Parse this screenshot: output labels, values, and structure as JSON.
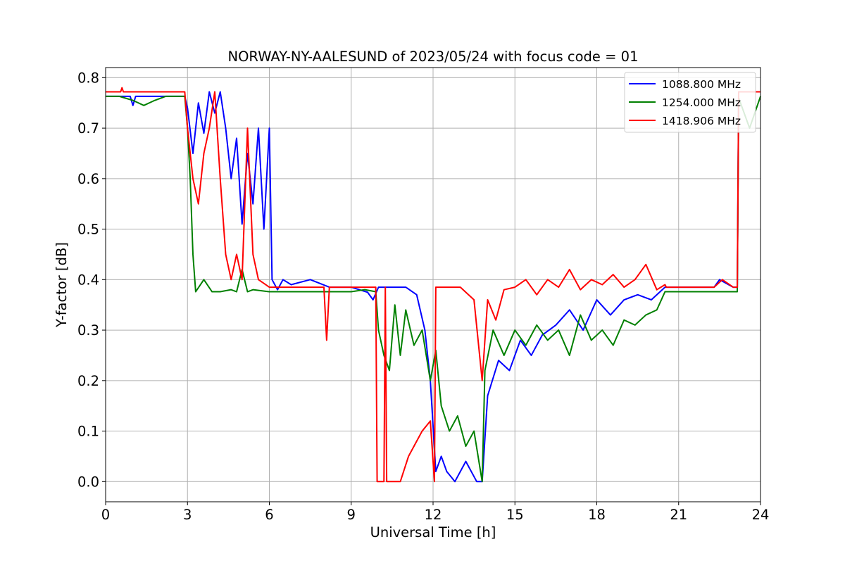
{
  "chart_data": {
    "type": "line",
    "title": "NORWAY-NY-AALESUND of 2023/05/24 with focus code = 01",
    "xlabel": "Universal Time [h]",
    "ylabel": "Y-factor [dB]",
    "xlim": [
      0,
      24
    ],
    "ylim": [
      -0.04,
      0.82
    ],
    "xticks": [
      0,
      3,
      6,
      9,
      12,
      15,
      18,
      21,
      24
    ],
    "yticks": [
      0.0,
      0.1,
      0.2,
      0.3,
      0.4,
      0.5,
      0.6,
      0.7,
      0.8
    ],
    "ytick_labels": [
      "0.0",
      "0.1",
      "0.2",
      "0.3",
      "0.4",
      "0.5",
      "0.6",
      "0.7",
      "0.8"
    ],
    "grid": true,
    "legend_position": "upper right",
    "series": [
      {
        "name": "1088.800 MHz",
        "color": "#0000ff",
        "points": [
          [
            0,
            0.763
          ],
          [
            0.9,
            0.763
          ],
          [
            1.0,
            0.745
          ],
          [
            1.1,
            0.763
          ],
          [
            2.9,
            0.763
          ],
          [
            3.0,
            0.74
          ],
          [
            3.2,
            0.65
          ],
          [
            3.4,
            0.75
          ],
          [
            3.6,
            0.69
          ],
          [
            3.8,
            0.772
          ],
          [
            4.0,
            0.73
          ],
          [
            4.2,
            0.772
          ],
          [
            4.4,
            0.7
          ],
          [
            4.6,
            0.6
          ],
          [
            4.8,
            0.68
          ],
          [
            5.0,
            0.51
          ],
          [
            5.2,
            0.65
          ],
          [
            5.4,
            0.55
          ],
          [
            5.6,
            0.7
          ],
          [
            5.8,
            0.5
          ],
          [
            6.0,
            0.7
          ],
          [
            6.1,
            0.4
          ],
          [
            6.3,
            0.38
          ],
          [
            6.5,
            0.4
          ],
          [
            6.8,
            0.39
          ],
          [
            7.5,
            0.4
          ],
          [
            8.2,
            0.385
          ],
          [
            9.0,
            0.385
          ],
          [
            9.6,
            0.375
          ],
          [
            9.8,
            0.36
          ],
          [
            10.0,
            0.385
          ],
          [
            11.0,
            0.385
          ],
          [
            11.4,
            0.37
          ],
          [
            11.7,
            0.3
          ],
          [
            11.9,
            0.2
          ],
          [
            12.1,
            0.02
          ],
          [
            12.3,
            0.05
          ],
          [
            12.5,
            0.02
          ],
          [
            12.8,
            0.0
          ],
          [
            13.2,
            0.04
          ],
          [
            13.6,
            0.0
          ],
          [
            13.8,
            0.0
          ],
          [
            14.0,
            0.17
          ],
          [
            14.4,
            0.24
          ],
          [
            14.8,
            0.22
          ],
          [
            15.2,
            0.28
          ],
          [
            15.6,
            0.25
          ],
          [
            16.0,
            0.29
          ],
          [
            16.5,
            0.31
          ],
          [
            17.0,
            0.34
          ],
          [
            17.5,
            0.3
          ],
          [
            18.0,
            0.36
          ],
          [
            18.5,
            0.33
          ],
          [
            19.0,
            0.36
          ],
          [
            19.5,
            0.37
          ],
          [
            20.0,
            0.36
          ],
          [
            20.5,
            0.385
          ],
          [
            21.0,
            0.385
          ],
          [
            22.3,
            0.385
          ],
          [
            22.5,
            0.4
          ],
          [
            23.0,
            0.385
          ],
          [
            23.15,
            0.385
          ],
          [
            23.2,
            0.772
          ],
          [
            24,
            0.772
          ]
        ]
      },
      {
        "name": "1254.000 MHz",
        "color": "#008000",
        "points": [
          [
            0,
            0.763
          ],
          [
            0.5,
            0.763
          ],
          [
            1.0,
            0.755
          ],
          [
            1.4,
            0.745
          ],
          [
            1.8,
            0.755
          ],
          [
            2.2,
            0.763
          ],
          [
            2.9,
            0.763
          ],
          [
            3.0,
            0.7
          ],
          [
            3.1,
            0.6
          ],
          [
            3.2,
            0.45
          ],
          [
            3.3,
            0.376
          ],
          [
            3.6,
            0.4
          ],
          [
            3.9,
            0.376
          ],
          [
            4.2,
            0.376
          ],
          [
            4.6,
            0.38
          ],
          [
            4.8,
            0.376
          ],
          [
            5.0,
            0.42
          ],
          [
            5.2,
            0.376
          ],
          [
            5.4,
            0.38
          ],
          [
            6.0,
            0.376
          ],
          [
            8.0,
            0.376
          ],
          [
            9.0,
            0.376
          ],
          [
            9.5,
            0.38
          ],
          [
            9.9,
            0.376
          ],
          [
            10.0,
            0.3
          ],
          [
            10.2,
            0.25
          ],
          [
            10.4,
            0.22
          ],
          [
            10.6,
            0.35
          ],
          [
            10.8,
            0.25
          ],
          [
            11.0,
            0.34
          ],
          [
            11.3,
            0.27
          ],
          [
            11.6,
            0.3
          ],
          [
            11.9,
            0.2
          ],
          [
            12.1,
            0.26
          ],
          [
            12.3,
            0.15
          ],
          [
            12.6,
            0.1
          ],
          [
            12.9,
            0.13
          ],
          [
            13.2,
            0.07
          ],
          [
            13.5,
            0.1
          ],
          [
            13.8,
            0.0
          ],
          [
            13.9,
            0.22
          ],
          [
            14.2,
            0.3
          ],
          [
            14.6,
            0.25
          ],
          [
            15.0,
            0.3
          ],
          [
            15.4,
            0.27
          ],
          [
            15.8,
            0.31
          ],
          [
            16.2,
            0.28
          ],
          [
            16.6,
            0.3
          ],
          [
            17.0,
            0.25
          ],
          [
            17.4,
            0.33
          ],
          [
            17.8,
            0.28
          ],
          [
            18.2,
            0.3
          ],
          [
            18.6,
            0.27
          ],
          [
            19.0,
            0.32
          ],
          [
            19.4,
            0.31
          ],
          [
            19.8,
            0.33
          ],
          [
            20.2,
            0.34
          ],
          [
            20.5,
            0.376
          ],
          [
            21.0,
            0.376
          ],
          [
            23.15,
            0.376
          ],
          [
            23.2,
            0.76
          ],
          [
            23.6,
            0.7
          ],
          [
            24,
            0.763
          ]
        ]
      },
      {
        "name": "1418.906 MHz",
        "color": "#ff0000",
        "points": [
          [
            0,
            0.772
          ],
          [
            0.55,
            0.772
          ],
          [
            0.6,
            0.78
          ],
          [
            0.65,
            0.772
          ],
          [
            2.9,
            0.772
          ],
          [
            3.0,
            0.7
          ],
          [
            3.2,
            0.6
          ],
          [
            3.4,
            0.55
          ],
          [
            3.6,
            0.65
          ],
          [
            3.8,
            0.7
          ],
          [
            4.0,
            0.772
          ],
          [
            4.2,
            0.6
          ],
          [
            4.4,
            0.45
          ],
          [
            4.6,
            0.4
          ],
          [
            4.8,
            0.45
          ],
          [
            5.0,
            0.4
          ],
          [
            5.2,
            0.7
          ],
          [
            5.4,
            0.45
          ],
          [
            5.6,
            0.4
          ],
          [
            6.0,
            0.385
          ],
          [
            8.0,
            0.385
          ],
          [
            8.1,
            0.28
          ],
          [
            8.2,
            0.385
          ],
          [
            9.9,
            0.385
          ],
          [
            9.95,
            0.0
          ],
          [
            10.2,
            0.0
          ],
          [
            10.25,
            0.385
          ],
          [
            10.3,
            0.0
          ],
          [
            10.8,
            0.0
          ],
          [
            11.1,
            0.05
          ],
          [
            11.4,
            0.08
          ],
          [
            11.6,
            0.1
          ],
          [
            11.9,
            0.12
          ],
          [
            12.05,
            0.0
          ],
          [
            12.1,
            0.385
          ],
          [
            13.0,
            0.385
          ],
          [
            13.5,
            0.36
          ],
          [
            13.8,
            0.2
          ],
          [
            14.0,
            0.36
          ],
          [
            14.3,
            0.32
          ],
          [
            14.6,
            0.38
          ],
          [
            15.0,
            0.385
          ],
          [
            15.4,
            0.4
          ],
          [
            15.8,
            0.37
          ],
          [
            16.2,
            0.4
          ],
          [
            16.6,
            0.385
          ],
          [
            17.0,
            0.42
          ],
          [
            17.4,
            0.38
          ],
          [
            17.8,
            0.4
          ],
          [
            18.2,
            0.39
          ],
          [
            18.6,
            0.41
          ],
          [
            19.0,
            0.385
          ],
          [
            19.4,
            0.4
          ],
          [
            19.8,
            0.43
          ],
          [
            20.2,
            0.38
          ],
          [
            20.5,
            0.39
          ],
          [
            20.55,
            0.385
          ],
          [
            22.3,
            0.385
          ],
          [
            22.6,
            0.4
          ],
          [
            23.0,
            0.385
          ],
          [
            23.15,
            0.385
          ],
          [
            23.2,
            0.772
          ],
          [
            24,
            0.772
          ]
        ]
      }
    ]
  }
}
